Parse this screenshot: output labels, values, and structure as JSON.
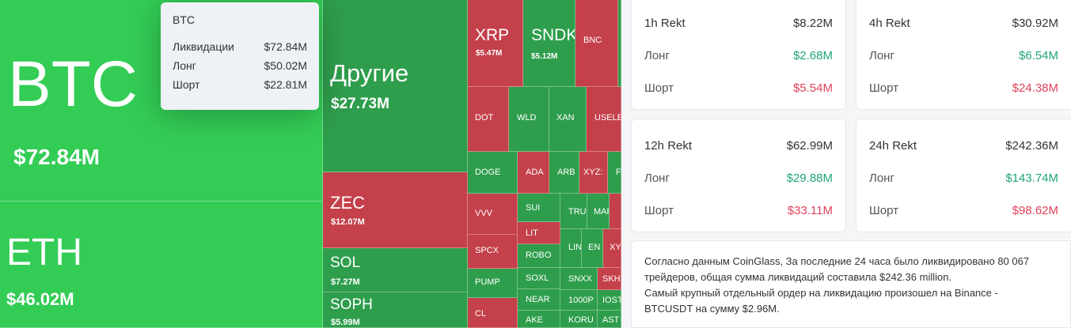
{
  "treemap": {
    "cells": [
      {
        "id": "btc",
        "symbol": "BTC",
        "value": "$72.84M",
        "color": "g1"
      },
      {
        "id": "eth",
        "symbol": "ETH",
        "value": "$46.02M",
        "color": "g1"
      },
      {
        "id": "other",
        "symbol": "Другие",
        "value": "$27.73M",
        "color": "g2"
      },
      {
        "id": "zec",
        "symbol": "ZEC",
        "value": "$12.07M",
        "color": "r1"
      },
      {
        "id": "sol",
        "symbol": "SOL",
        "value": "$7.27M",
        "color": "g2"
      },
      {
        "id": "soph",
        "symbol": "SOPH",
        "value": "$5.99M",
        "color": "g2"
      },
      {
        "id": "xrp",
        "symbol": "XRP",
        "value": "$5.47M",
        "color": "r1"
      },
      {
        "id": "sndk",
        "symbol": "SNDK",
        "value": "$5.12M",
        "color": "g2"
      },
      {
        "id": "bnc",
        "symbol": "BNC",
        "value": "",
        "color": "r1"
      },
      {
        "id": "dot",
        "symbol": "DOT",
        "value": "",
        "color": "r1"
      },
      {
        "id": "wld",
        "symbol": "WLD",
        "value": "",
        "color": "g2"
      },
      {
        "id": "xan",
        "symbol": "XAN",
        "value": "",
        "color": "g2"
      },
      {
        "id": "usele",
        "symbol": "USELE",
        "value": "",
        "color": "r1"
      },
      {
        "id": "doge",
        "symbol": "DOGE",
        "value": "",
        "color": "g2"
      },
      {
        "id": "ada",
        "symbol": "ADA",
        "value": "",
        "color": "r1"
      },
      {
        "id": "arb",
        "symbol": "ARB",
        "value": "",
        "color": "g2"
      },
      {
        "id": "xyz",
        "symbol": "XYZ:",
        "value": "",
        "color": "r1"
      },
      {
        "id": "f",
        "symbol": "F",
        "value": "",
        "color": "g2"
      },
      {
        "id": "vvv",
        "symbol": "VVV",
        "value": "",
        "color": "r1"
      },
      {
        "id": "sui",
        "symbol": "SUI",
        "value": "",
        "color": "g2"
      },
      {
        "id": "tru",
        "symbol": "TRU",
        "value": "",
        "color": "g2"
      },
      {
        "id": "mar",
        "symbol": "MAF",
        "value": "",
        "color": "g2"
      },
      {
        "id": "ltt",
        "symbol": "LIT",
        "value": "",
        "color": "r1"
      },
      {
        "id": "spcx",
        "symbol": "SPCX",
        "value": "",
        "color": "r1"
      },
      {
        "id": "robo",
        "symbol": "ROBO",
        "value": "",
        "color": "g2"
      },
      {
        "id": "lin",
        "symbol": "LIN",
        "value": "",
        "color": "g2"
      },
      {
        "id": "en",
        "symbol": "EN",
        "value": "",
        "color": "g2"
      },
      {
        "id": "xy",
        "symbol": "XY",
        "value": "",
        "color": "r1"
      },
      {
        "id": "pump",
        "symbol": "PUMP",
        "value": "",
        "color": "g2"
      },
      {
        "id": "soxl",
        "symbol": "SOXL",
        "value": "",
        "color": "g2"
      },
      {
        "id": "snxx",
        "symbol": "SNXX",
        "value": "",
        "color": "g2"
      },
      {
        "id": "skh",
        "symbol": "SKH",
        "value": "",
        "color": "r1"
      },
      {
        "id": "near",
        "symbol": "NEAR",
        "value": "",
        "color": "g2"
      },
      {
        "id": "1000p",
        "symbol": "1000P",
        "value": "",
        "color": "g2"
      },
      {
        "id": "ios",
        "symbol": "IOST",
        "value": "",
        "color": "g2"
      },
      {
        "id": "cl",
        "symbol": "CL",
        "value": "",
        "color": "r1"
      },
      {
        "id": "ake",
        "symbol": "AKE",
        "value": "",
        "color": "g2"
      },
      {
        "id": "koru",
        "symbol": "KORU",
        "value": "",
        "color": "g2"
      },
      {
        "id": "ast",
        "symbol": "AST",
        "value": "",
        "color": "g2"
      }
    ]
  },
  "tooltip": {
    "title": "BTC",
    "rows": [
      {
        "label": "Ликвидации",
        "value": "$72.84M"
      },
      {
        "label": "Лонг",
        "value": "$50.02M"
      },
      {
        "label": "Шорт",
        "value": "$22.81M"
      }
    ]
  },
  "stats": {
    "h1": {
      "title": "1h Rekt",
      "total": "$8.22M",
      "long_label": "Лонг",
      "long": "$2.68M",
      "short_label": "Шорт",
      "short": "$5.54M"
    },
    "h4": {
      "title": "4h Rekt",
      "total": "$30.92M",
      "long_label": "Лонг",
      "long": "$6.54M",
      "short_label": "Шорт",
      "short": "$24.38M"
    },
    "h12": {
      "title": "12h Rekt",
      "total": "$62.99M",
      "long_label": "Лонг",
      "long": "$29.88M",
      "short_label": "Шорт",
      "short": "$33.11M"
    },
    "h24": {
      "title": "24h Rekt",
      "total": "$242.36M",
      "long_label": "Лонг",
      "long": "$143.74M",
      "short_label": "Шорт",
      "short": "$98.62M"
    }
  },
  "summary": {
    "line1": "Согласно данным CoinGlass, За последние 24 часа было ликвидировано 80 067",
    "line2": "трейдеров, общая сумма ликвидаций составила $242.36 million.",
    "line3": "Самый крупный отдельный ордер на ликвидацию произошел на Binance -",
    "line4": "BTCUSDT на сумму $2.96M."
  },
  "colors": {
    "long_green": "#1fa37a",
    "short_red": "#e0415a",
    "tile_green": "#33cc55",
    "tile_dark_green": "#2e9e4c",
    "tile_red": "#c4404a"
  }
}
